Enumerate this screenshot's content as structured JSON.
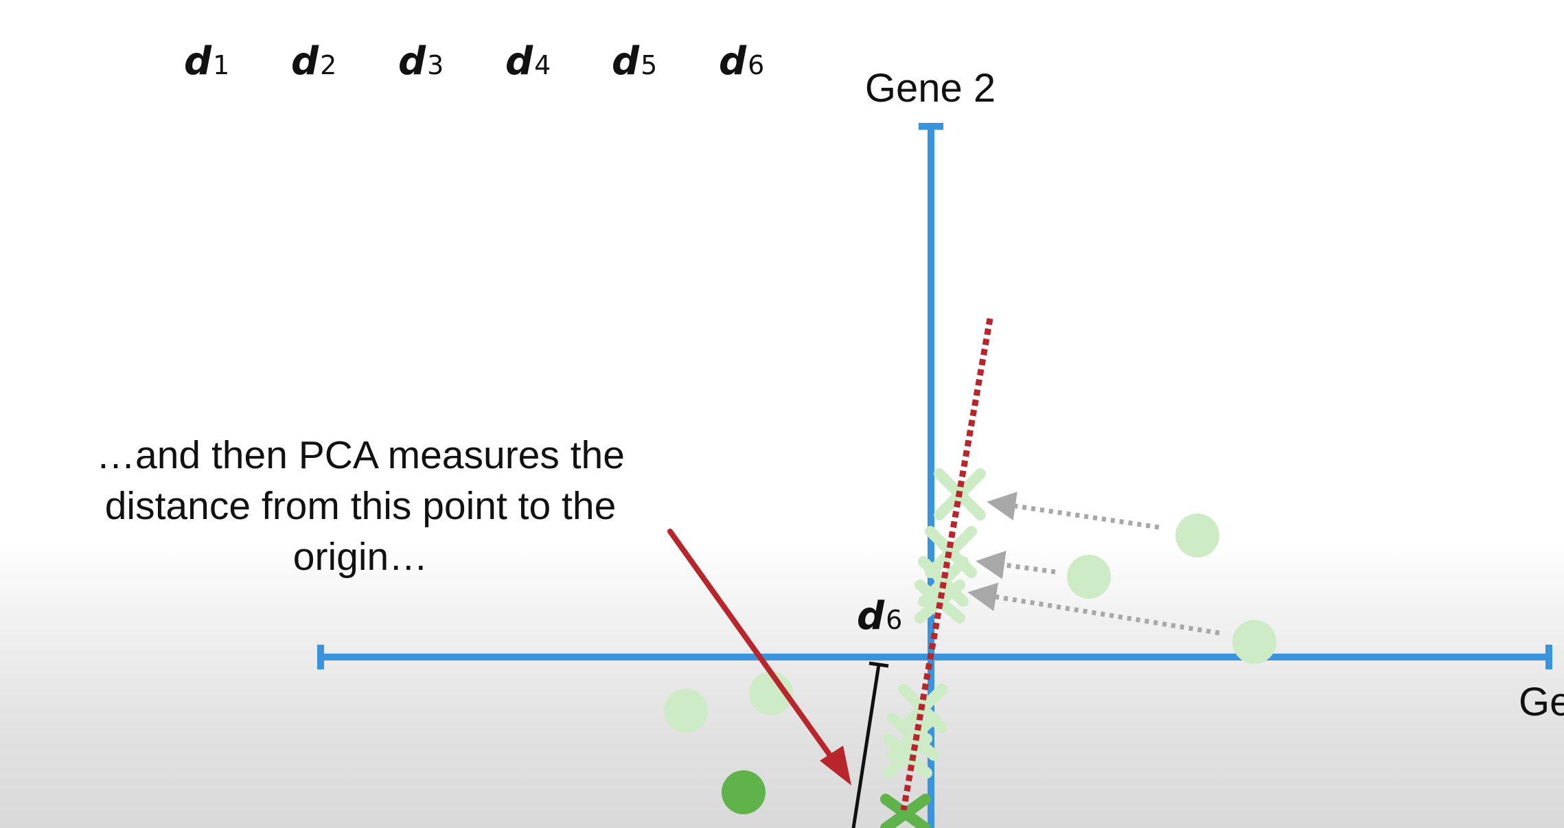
{
  "title_labels": [
    {
      "letter": "d",
      "sub": "1"
    },
    {
      "letter": "d",
      "sub": "2"
    },
    {
      "letter": "d",
      "sub": "3"
    },
    {
      "letter": "d",
      "sub": "4"
    },
    {
      "letter": "d",
      "sub": "5"
    },
    {
      "letter": "d",
      "sub": "6"
    }
  ],
  "axes": {
    "y_label": "Gene 2",
    "x_label": "Ge"
  },
  "caption": "…and then PCA measures the distance from this point to the origin…",
  "distance_label": {
    "letter": "d",
    "sub": "6"
  },
  "colors": {
    "axis": "#3a93dd",
    "pc_line": "#b8262c",
    "arrow": "#b8262c",
    "point_faded": "#cdebc4",
    "point_solid": "#5fb34a",
    "projection_arrow": "#a8a8a8",
    "distance_bar": "#111111"
  },
  "icons": {
    "projected_point": "x-mark",
    "data_point": "circle"
  }
}
